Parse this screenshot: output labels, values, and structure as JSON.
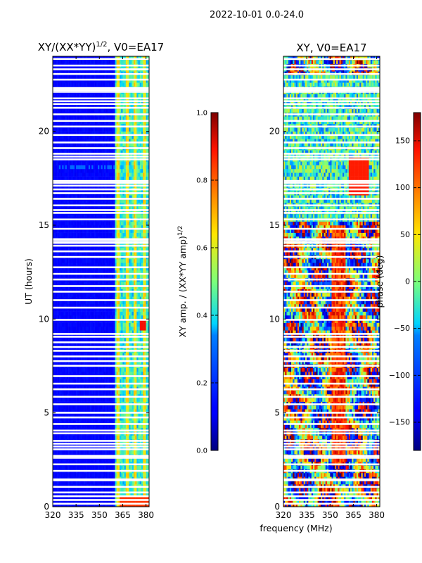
{
  "suptitle": "2022-10-01 0.0-24.0",
  "panels": {
    "amp": {
      "title_prefix": "XY/(XX*YY)",
      "title_sup": "1/2",
      "title_suffix": ", V0=EA17"
    },
    "phase": {
      "title": "XY, V0=EA17"
    }
  },
  "colorbars": {
    "amp": {
      "label_prefix": "XY amp. / (XX*YY amp)",
      "label_sup": "1/2",
      "ticks": [
        "0.0",
        "0.2",
        "0.4",
        "0.6",
        "0.8",
        "1.0"
      ]
    },
    "phase": {
      "label": "phase (deg)",
      "ticks": [
        "−150",
        "−100",
        "−50",
        "0",
        "50",
        "100",
        "150"
      ]
    }
  },
  "axes": {
    "ylabel": "UT (hours)",
    "xlabel": "frequency (MHz)",
    "xticks": [
      "320",
      "335",
      "350",
      "365",
      "380"
    ],
    "yticks": [
      "0",
      "5",
      "10",
      "15",
      "20"
    ]
  },
  "chart_data": [
    {
      "type": "heatmap",
      "title": "XY/(XX*YY)^1/2, V0=EA17",
      "xlabel": "",
      "ylabel": "UT (hours)",
      "xlim": [
        320,
        382
      ],
      "ylim": [
        0,
        24
      ],
      "color_range": [
        0.0,
        1.0
      ],
      "colormap": "jet",
      "colorbar_label": "XY amp. / (XX*YY amp)^1/2",
      "typical_values": {
        "freq_below_360": 0.1,
        "freq_360_382": 0.35,
        "bright_bands_365_381": 0.55
      }
    },
    {
      "type": "heatmap",
      "title": "XY, V0=EA17",
      "xlabel": "frequency (MHz)",
      "ylabel": "",
      "xlim": [
        320,
        382
      ],
      "ylim": [
        0,
        24
      ],
      "color_range": [
        -180,
        180
      ],
      "colormap": "jet",
      "colorbar_label": "phase (deg)"
    }
  ],
  "gaps_ut_hours": [
    0.15,
    0.35,
    0.55,
    0.75,
    1.05,
    1.4,
    1.45,
    1.9,
    2.25,
    2.6,
    2.7,
    3.05,
    3.2,
    3.35,
    3.5,
    3.9,
    4.05,
    4.4,
    4.75,
    5.0,
    5.45,
    5.85,
    6.25,
    6.55,
    6.95,
    7.5,
    7.75,
    8.0,
    8.3,
    8.5,
    8.75,
    9.05,
    9.2,
    9.95,
    10.6,
    11.0,
    11.45,
    11.75,
    12.1,
    12.4,
    12.75,
    13.3,
    13.6,
    13.9,
    14.05,
    14.15,
    14.25,
    14.8,
    15.3,
    15.65,
    15.8,
    16.05,
    16.4,
    16.7,
    16.9,
    17.1,
    17.25,
    17.35,
    18.5,
    18.65,
    18.8,
    19.1,
    19.4,
    19.8,
    20.25,
    20.55,
    20.9,
    21.25,
    21.45,
    21.6,
    21.75,
    22.1,
    22.2,
    22.3,
    22.75,
    23.05,
    23.3,
    23.5,
    23.85
  ]
}
